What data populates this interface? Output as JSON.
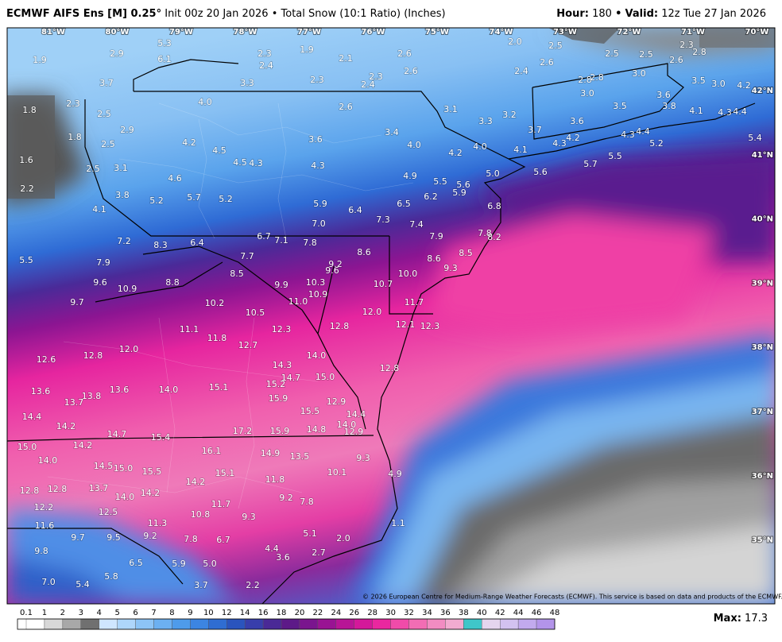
{
  "header": {
    "model": "ECMWF AIFS Ens [M] 0.25°",
    "init": "Init 00z 20 Jan 2026 • Total Snow (10:1 Ratio) (Inches)",
    "hour_key": "Hour:",
    "hour": "180",
    "separator": "•",
    "valid_key": "Valid:",
    "valid": "12z Tue 27 Jan 2026"
  },
  "longitudes": [
    "81°W",
    "80°W",
    "79°W",
    "78°W",
    "77°W",
    "76°W",
    "75°W",
    "74°W",
    "73°W",
    "72°W",
    "71°W",
    "70°W"
  ],
  "latitudes": [
    "42°N",
    "41°N",
    "40°N",
    "39°N",
    "38°N",
    "37°N",
    "36°N",
    "35°N"
  ],
  "snow_labels": [
    "5.3",
    "1.9",
    "2.9",
    "6.1",
    "2.3",
    "1.9",
    "2.1",
    "2.4",
    "2.6",
    "2.6",
    "2.3",
    "2.4",
    "2.3",
    "3.3",
    "3.7",
    "2.3",
    "1.8",
    "2.5",
    "4.0",
    "2.6",
    "3.1",
    "3.3",
    "3.2",
    "2.0",
    "2.5",
    "2.5",
    "2.5",
    "2.3",
    "2.8",
    "2.6",
    "2.6",
    "2.4",
    "2.8",
    "2.8",
    "3.0",
    "3.0",
    "3.5",
    "3.6",
    "3.5",
    "3.0",
    "4.2",
    "3.8",
    "4.1",
    "4.3",
    "4.4",
    "5.4",
    "5.2",
    "3.7",
    "3.6",
    "4.2",
    "4.3",
    "4.3",
    "4.4",
    "5.5",
    "5.7",
    "5.6",
    "4.1",
    "4.0",
    "4.2",
    "5.0",
    "2.9",
    "1.8",
    "2.5",
    "4.2",
    "4.5",
    "4.5",
    "4.3",
    "3.6",
    "3.4",
    "4.0",
    "1.6",
    "2.5",
    "3.1",
    "4.6",
    "4.3",
    "4.9",
    "5.5",
    "5.6",
    "5.9",
    "6.2",
    "2.2",
    "3.8",
    "5.2",
    "5.7",
    "5.2",
    "5.9",
    "6.4",
    "6.5",
    "7.3",
    "6.8",
    "4.1",
    "7.0",
    "7.4",
    "7.9",
    "7.8",
    "8.2",
    "6.7",
    "7.1",
    "7.8",
    "7.2",
    "8.3",
    "6.4",
    "7.7",
    "8.6",
    "8.5",
    "8.6",
    "5.5",
    "7.9",
    "9.2",
    "9.6",
    "9.3",
    "8.5",
    "10.0",
    "9.6",
    "10.9",
    "8.8",
    "9.9",
    "10.3",
    "10.7",
    "10.9",
    "11.0",
    "9.7",
    "10.2",
    "11.7",
    "10.5",
    "12.0",
    "12.1",
    "12.3",
    "12.8",
    "12.3",
    "11.1",
    "11.8",
    "12.7",
    "12.0",
    "12.8",
    "12.6",
    "14.0",
    "14.3",
    "12.8",
    "14.7",
    "15.0",
    "15.2",
    "15.1",
    "13.6",
    "13.6",
    "14.0",
    "13.8",
    "13.7",
    "15.9",
    "12.9",
    "15.5",
    "14.4",
    "14.4",
    "14.2",
    "14.0",
    "12.9",
    "17.2",
    "15.9",
    "14.8",
    "14.7",
    "15.4",
    "15.0",
    "14.2",
    "16.1",
    "14.9",
    "13.5",
    "9.3",
    "14.0",
    "14.5",
    "15.0",
    "15.5",
    "15.1",
    "10.1",
    "4.9",
    "12.8",
    "12.8",
    "13.7",
    "14.0",
    "14.2",
    "14.2",
    "11.8",
    "9.2",
    "7.8",
    "12.2",
    "12.5",
    "11.7",
    "10.8",
    "9.3",
    "1.1",
    "11.6",
    "11.3",
    "5.1",
    "2.0",
    "9.7",
    "9.5",
    "9.2",
    "7.8",
    "6.7",
    "9.8",
    "4.4",
    "2.7",
    "3.6",
    "6.5",
    "5.9",
    "5.0",
    "5.8",
    "7.0",
    "5.4",
    "3.7",
    "2.2"
  ],
  "legend": {
    "ticks": [
      "0.1",
      "1",
      "2",
      "3",
      "4",
      "5",
      "6",
      "7",
      "8",
      "9",
      "10",
      "12",
      "14",
      "16",
      "18",
      "20",
      "22",
      "24",
      "26",
      "28",
      "30",
      "32",
      "34",
      "36",
      "38",
      "40",
      "42",
      "44",
      "46",
      "48"
    ],
    "colors": [
      "#ffffff",
      "#d8d8d8",
      "#a8a8a8",
      "#707070",
      "#cfe6ff",
      "#aed6fb",
      "#8dc4f6",
      "#6cb0f1",
      "#4e9bea",
      "#3c85e2",
      "#2f6dd2",
      "#2a54bd",
      "#383eab",
      "#4a2996",
      "#5d1a88",
      "#7a158e",
      "#991393",
      "#b81596",
      "#d4189a",
      "#ea279f",
      "#f04ba9",
      "#f26db4",
      "#f28cc2",
      "#f2abd0",
      "#3fc6c9",
      "#e5d5ee",
      "#d3c2f0",
      "#c2aaee",
      "#b394ea"
    ]
  },
  "max_key": "Max:",
  "max": "17.3",
  "copyright": "© 2026 European Centre for Medium-Range Weather Forecasts (ECMWF). This service is based on data and products of the ECMWF."
}
